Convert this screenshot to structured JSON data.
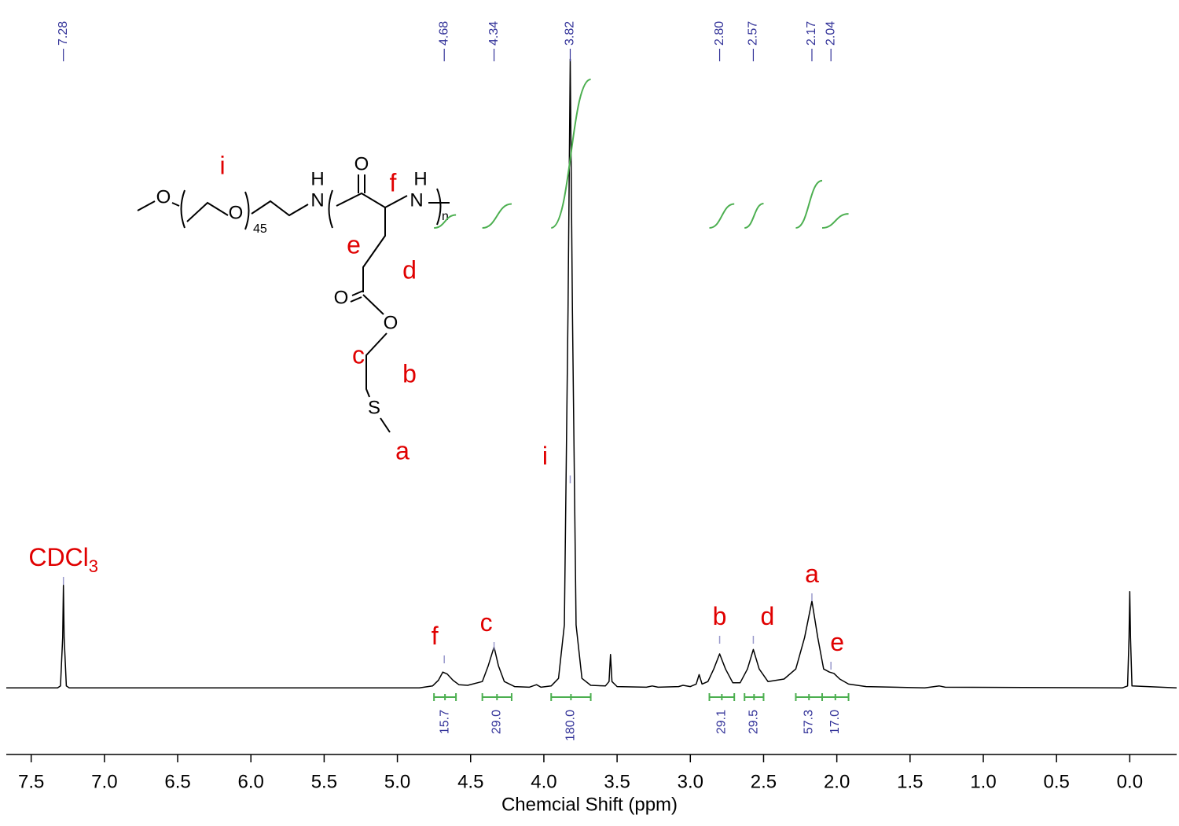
{
  "chart_data": {
    "type": "line",
    "x_label": "Chemcial Shift (ppm)",
    "xlim": [
      7.67,
      -0.32
    ],
    "ylim": [
      -10.6,
      109.4
    ],
    "xticks": [
      7.5,
      {
        "value": 7,
        "label": "7.0"
      },
      6.5,
      {
        "value": 6,
        "label": "6.0"
      },
      5.5,
      {
        "value": 5,
        "label": "5.0"
      },
      4.5,
      {
        "value": 4,
        "label": "4.0"
      },
      3.5,
      {
        "value": 3,
        "label": "3.0"
      },
      2.5,
      {
        "value": 2,
        "label": "2.0"
      },
      1.5,
      {
        "value": 1,
        "label": "1.0"
      },
      0.5,
      {
        "value": 0,
        "label": "0.0"
      }
    ],
    "series": [
      {
        "color": "#000000",
        "x": [
          7.67,
          7.32,
          7.3,
          7.285,
          7.28,
          7.275,
          7.26,
          7.24,
          4.85,
          4.76,
          4.72,
          4.69,
          4.66,
          4.62,
          4.58,
          4.52,
          4.42,
          4.38,
          4.34,
          4.31,
          4.27,
          4.2,
          4.1,
          4.05,
          4.02,
          3.95,
          3.9,
          3.86,
          3.835,
          3.82,
          3.805,
          3.78,
          3.74,
          3.68,
          3.58,
          3.555,
          3.545,
          3.535,
          3.5,
          3.3,
          3.26,
          3.22,
          3.08,
          3.05,
          3.0,
          2.96,
          2.94,
          2.92,
          2.88,
          2.84,
          2.8,
          2.76,
          2.71,
          2.66,
          2.61,
          2.57,
          2.53,
          2.47,
          2.36,
          2.28,
          2.22,
          2.17,
          2.13,
          2.09,
          2.05,
          2.02,
          1.98,
          1.92,
          1.8,
          1.4,
          1.3,
          1.26,
          0.05,
          0.015,
          0.005,
          0,
          -0.005,
          -0.015,
          -0.32
        ],
        "values": [
          0,
          0,
          0.3,
          8,
          16.3,
          8,
          0.3,
          0,
          0,
          0.3,
          1.2,
          2.5,
          2.2,
          1.2,
          0.5,
          0.4,
          1.0,
          3.5,
          6.5,
          3.5,
          1.0,
          0.2,
          0.1,
          0.5,
          0.1,
          0.3,
          1.5,
          10,
          60,
          100,
          60,
          10,
          1.5,
          0.4,
          0.3,
          1.0,
          5.3,
          1.0,
          0.2,
          0.1,
          0.3,
          0.1,
          0.2,
          0.4,
          0.2,
          0.6,
          2.1,
          0.6,
          1.0,
          3.0,
          5.4,
          3.0,
          0.8,
          0.8,
          3.0,
          6.1,
          3.0,
          1.0,
          1.4,
          3.0,
          8,
          13.8,
          8,
          3.0,
          2.5,
          2.3,
          1.4,
          0.6,
          0.2,
          0,
          0.3,
          0.1,
          0,
          0.3,
          8,
          15.3,
          8,
          0.3,
          0
        ]
      }
    ],
    "peaks": {
      "color": "#333399",
      "values": [
        7.28,
        4.68,
        4.34,
        3.82,
        2.8,
        2.57,
        2.17,
        2.04
      ],
      "value_labels": [
        "7.28",
        "4.68",
        "4.34",
        "3.82",
        "2.80",
        "2.57",
        "2.17",
        "2.04"
      ]
    },
    "integrals": {
      "color": "#4caf50",
      "label_color": "#333399",
      "ranges": [
        [
          4.75,
          4.6
        ],
        [
          4.42,
          4.22
        ],
        [
          3.95,
          3.68
        ],
        [
          2.87,
          2.7
        ],
        [
          2.63,
          2.5
        ],
        [
          2.28,
          2.1
        ],
        [
          2.1,
          1.92
        ]
      ],
      "values": [
        15.7,
        29,
        180,
        29.1,
        29.5,
        57.3,
        17
      ],
      "value_labels": [
        "15.7",
        "29.0",
        "180.0",
        "29.1",
        "29.5",
        "57.3",
        "17.0"
      ]
    },
    "annotations": [
      {
        "text": "CDCl",
        "subscript": "3"
      },
      {
        "text": "f"
      },
      {
        "text": "c"
      },
      {
        "text": "i"
      },
      {
        "text": "b"
      },
      {
        "text": "d"
      },
      {
        "text": "a"
      },
      {
        "text": "e"
      }
    ]
  },
  "structure": {
    "atoms": [
      "O",
      "O",
      "45",
      "H",
      "N",
      "O",
      "H",
      "N",
      "n",
      "O",
      "O",
      "S"
    ],
    "labels": [
      "i",
      "f",
      "e",
      "d",
      "c",
      "b",
      "a"
    ]
  }
}
